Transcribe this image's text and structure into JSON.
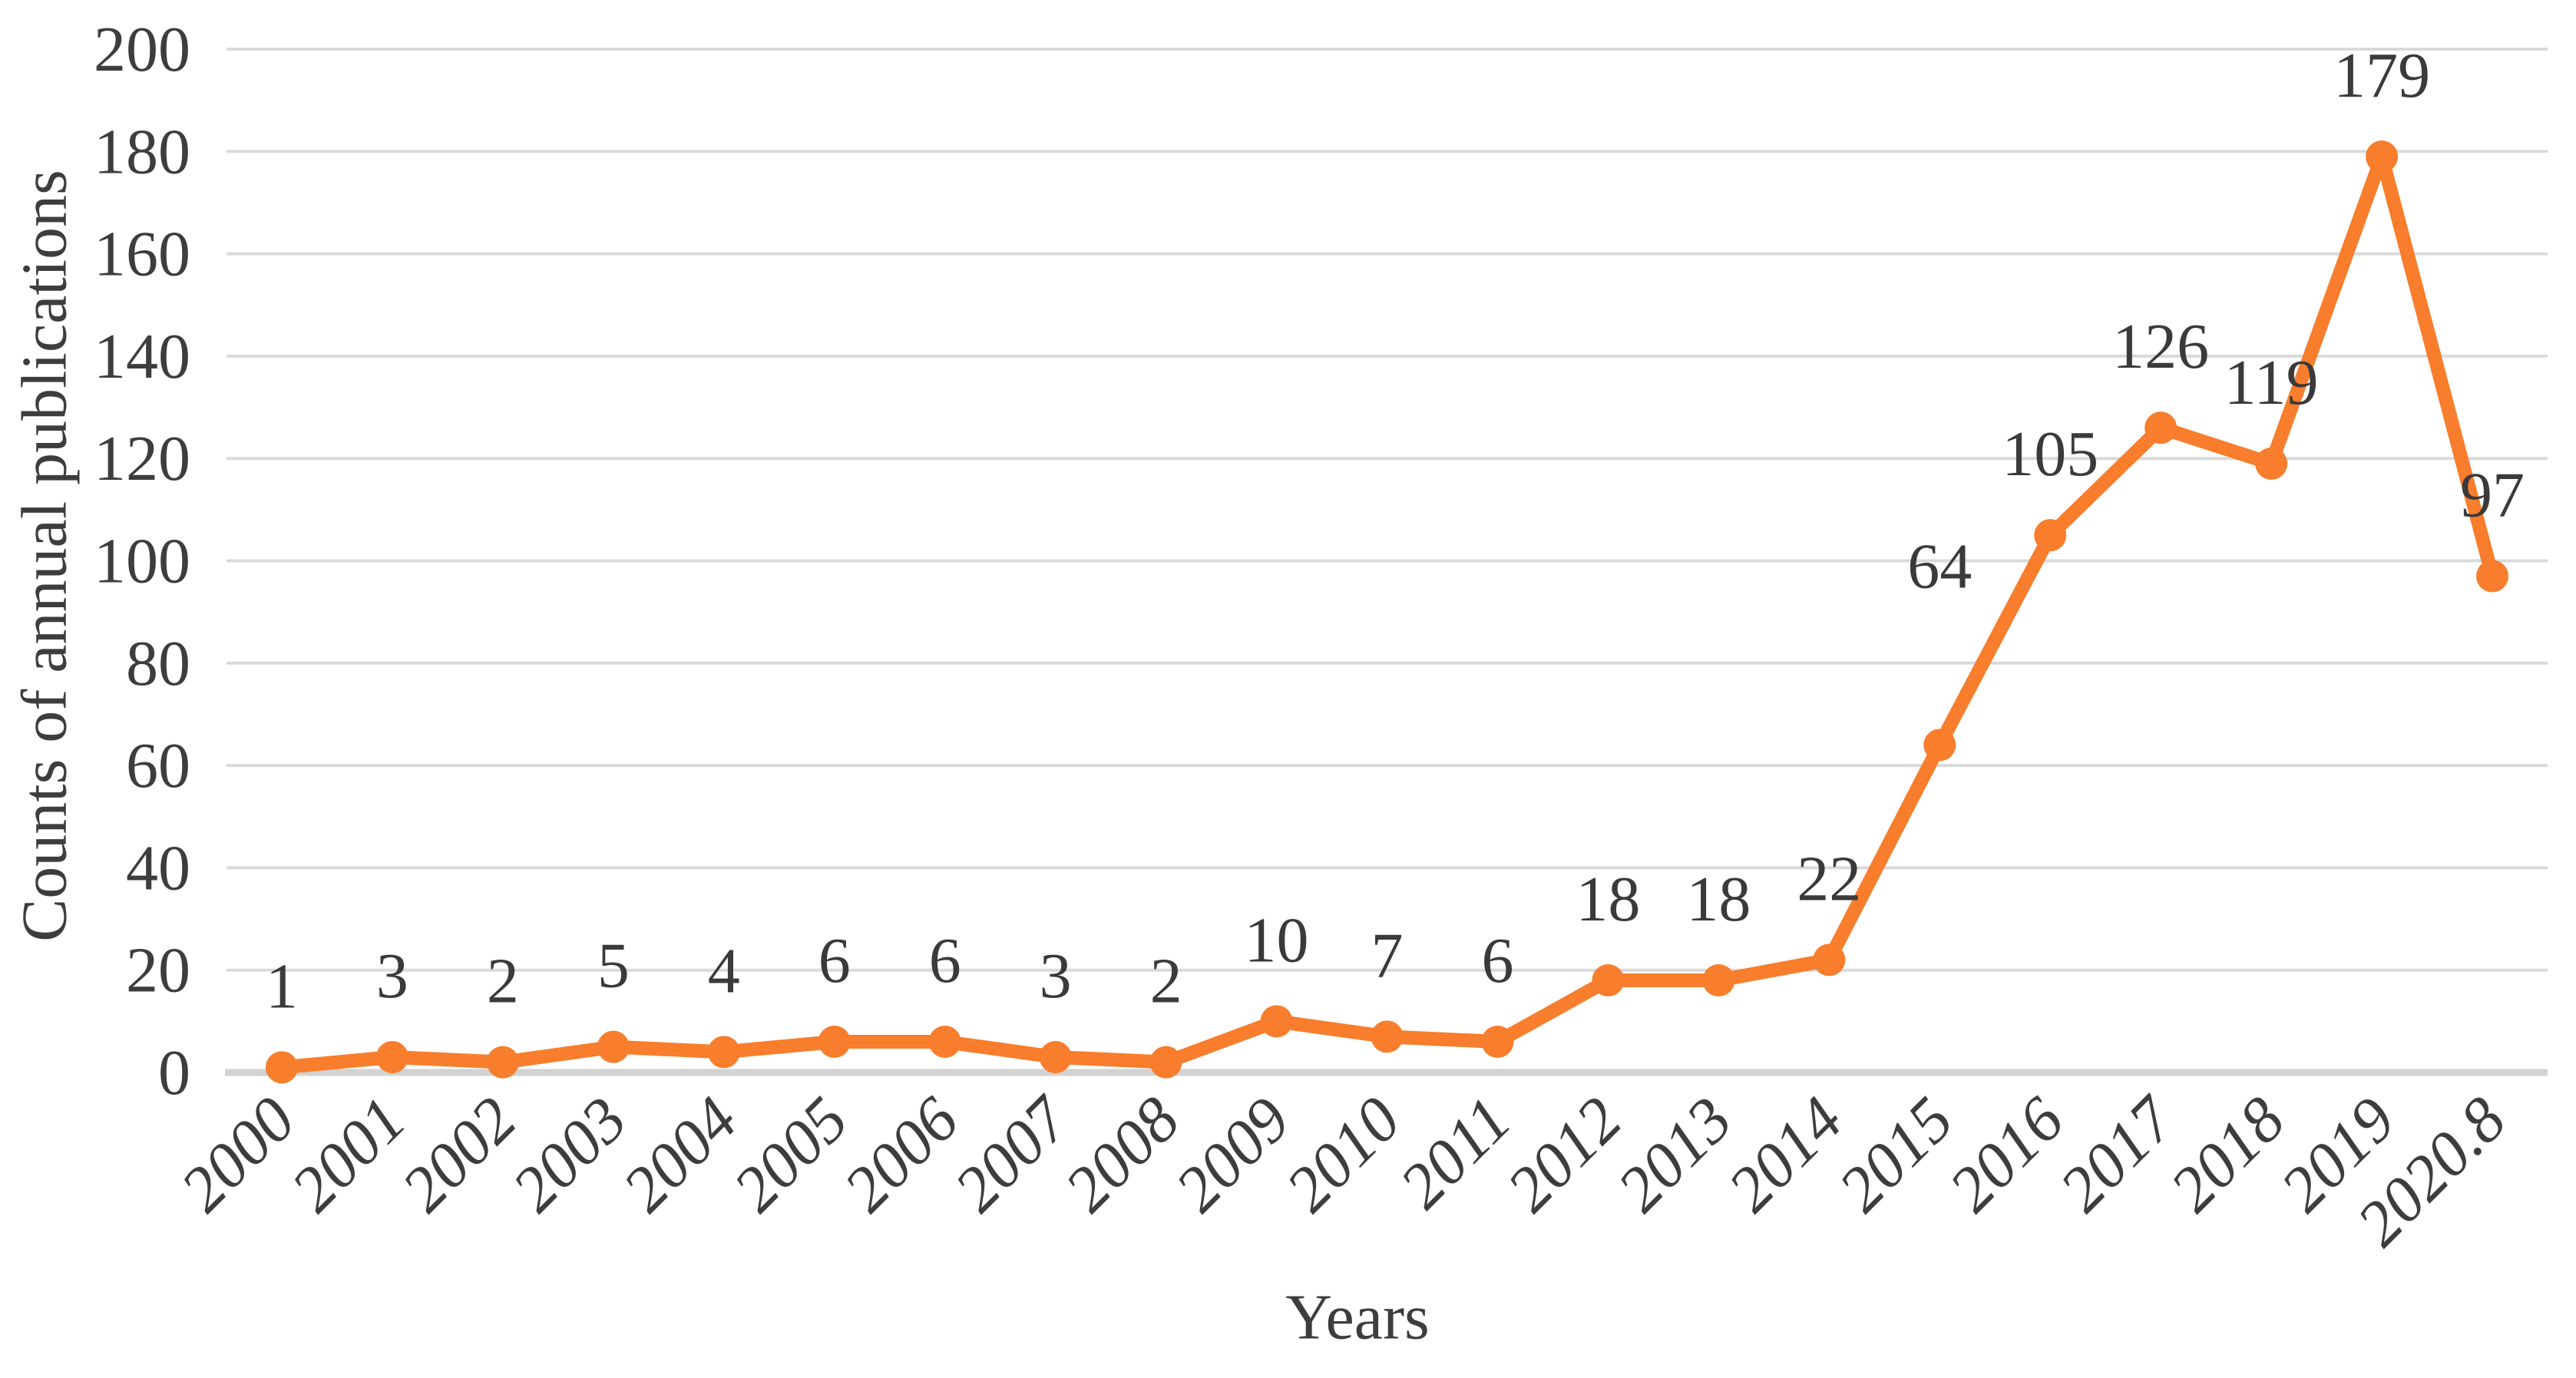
{
  "chart_data": {
    "type": "line",
    "title": "",
    "xlabel": "Years",
    "ylabel": "Counts of annual publications",
    "categories": [
      "2000",
      "2001",
      "2002",
      "2003",
      "2004",
      "2005",
      "2006",
      "2007",
      "2008",
      "2009",
      "2010",
      "2011",
      "2012",
      "2013",
      "2014",
      "2015",
      "2016",
      "2017",
      "2018",
      "2019",
      "2020.8"
    ],
    "values": [
      1,
      3,
      2,
      5,
      4,
      6,
      6,
      3,
      2,
      10,
      7,
      6,
      18,
      18,
      22,
      64,
      105,
      126,
      119,
      179,
      97
    ],
    "series_name": "Counts of annual publications",
    "ylim": [
      0,
      200
    ],
    "ytick_step": 20,
    "yticks": [
      0,
      20,
      40,
      60,
      80,
      100,
      120,
      140,
      160,
      180,
      200
    ],
    "grid": "horizontal",
    "legend": "none",
    "data_labels_visible": true,
    "x_tick_rotation_deg": -45,
    "colors": {
      "line": "#f87d2c",
      "marker": "#f87d2c",
      "gridline": "#dadada",
      "axis_line": "#d2d2d2",
      "text": "#3d3d3d",
      "background": "#ffffff"
    },
    "label_offsets": {
      "15": [
        0,
        -205
      ]
    }
  }
}
